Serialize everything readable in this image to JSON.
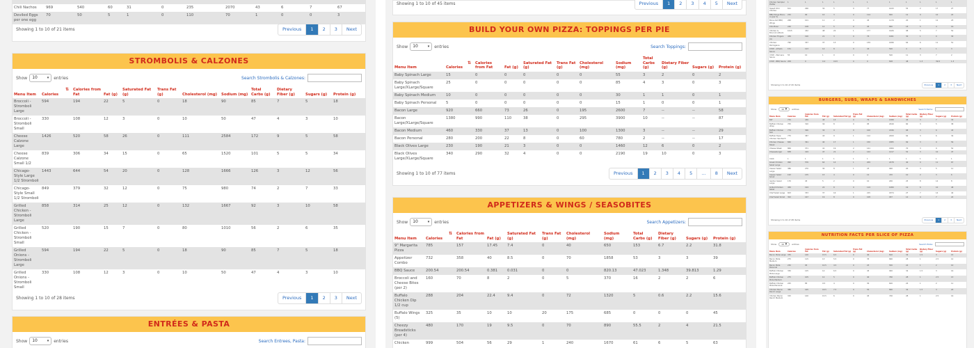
{
  "headers": [
    "Menu Item",
    "Calories",
    "Calories from Fat",
    "Fat (g)",
    "Saturated Fat (g)",
    "Trans Fat (g)",
    "Cholesterol (mg)",
    "Sodium (mg)",
    "Total Carbs (g)",
    "Dietary Fiber (g)",
    "Sugars (g)",
    "Protein (g)"
  ],
  "ui": {
    "show": "Show",
    "entries": "entries",
    "select_value": "10",
    "previous": "Previous",
    "next": "Next",
    "ellipsis": "…",
    "sort_glyph": "⇅"
  },
  "col1": {
    "top_rows": [
      [
        "Chili Nachos",
        "969",
        "540",
        "60",
        "31",
        "0",
        "235",
        "2070",
        "43",
        "6",
        "7",
        "67"
      ],
      [
        "Deviled Eggs per one egg",
        "70",
        "50",
        "5",
        "1",
        "0",
        "110",
        "70",
        "1",
        "0",
        "0",
        "3"
      ]
    ],
    "top_info": "Showing 1 to 10 of 21 items",
    "top_pages": [
      "1",
      "2",
      "3"
    ],
    "strom": {
      "title": "STROMBOLIS & CALZONES",
      "search_label": "Search Strombolis & Calzones:",
      "info": "Showing 1 to 10 of 28 items",
      "pages": [
        "1",
        "2",
        "3"
      ],
      "rows": [
        [
          "Broccoli - Stromboli Large",
          "594",
          "194",
          "22",
          "5",
          "0",
          "18",
          "90",
          "85",
          "7",
          "5",
          "18"
        ],
        [
          "Broccoli - Stromboli Small",
          "330",
          "108",
          "12",
          "3",
          "0",
          "10",
          "50",
          "47",
          "4",
          "3",
          "10"
        ],
        [
          "Cheese Calzone Large",
          "1426",
          "520",
          "58",
          "26",
          "0",
          "111",
          "2584",
          "172",
          "9",
          "5",
          "58"
        ],
        [
          "Cheese Calzone Small 1/2",
          "839",
          "306",
          "34",
          "15",
          "0",
          "65",
          "1520",
          "101",
          "5",
          "5",
          "34"
        ],
        [
          "Chicago-Style Large 1/2 Stromboli",
          "1443",
          "644",
          "54",
          "20",
          "0",
          "128",
          "1666",
          "126",
          "3",
          "12",
          "56"
        ],
        [
          "Chicago-Style Small 1/2 Stromboli",
          "849",
          "379",
          "32",
          "12",
          "0",
          "75",
          "980",
          "74",
          "2",
          "7",
          "33"
        ],
        [
          "Grilled Chicken - Stromboli Large",
          "858",
          "314",
          "25",
          "12",
          "0",
          "132",
          "1667",
          "92",
          "3",
          "10",
          "58"
        ],
        [
          "Grilled Chicken - Stromboli Small",
          "520",
          "190",
          "15",
          "7",
          "0",
          "80",
          "1010",
          "56",
          "2",
          "6",
          "35"
        ],
        [
          "Grilled Onions - Stromboli Large",
          "594",
          "194",
          "22",
          "5",
          "0",
          "18",
          "90",
          "85",
          "7",
          "5",
          "18"
        ],
        [
          "Grilled Onions - Stromboli Small",
          "330",
          "108",
          "12",
          "3",
          "0",
          "10",
          "50",
          "47",
          "4",
          "3",
          "10"
        ]
      ]
    },
    "entrees": {
      "title": "ENTRÉES & PASTA",
      "search_label": "Search Entrees, Pasta:"
    }
  },
  "col2": {
    "top_info": "Showing 1 to 10 of 45 items",
    "top_pages": [
      "1",
      "2",
      "3",
      "4",
      "5"
    ],
    "toppings": {
      "title": "BUILD YOUR OWN PIZZA: TOPPINGS PER PIE",
      "search_label": "Search Toppings:",
      "info": "Showing 1 to 10 of 77 items",
      "pages": [
        "1",
        "2",
        "3",
        "4",
        "5",
        "8"
      ],
      "rows": [
        [
          "Baby Spinach Large",
          "15",
          "0",
          "0",
          "0",
          "0",
          "0",
          "55",
          "3",
          "2",
          "0",
          "2"
        ],
        [
          "Baby Spinach Large/XLarge/Square",
          "25",
          "0",
          "0",
          "0",
          "0",
          "0",
          "85",
          "4",
          "3",
          "0",
          "3"
        ],
        [
          "Baby Spinach Medium",
          "10",
          "0",
          "0",
          "0",
          "0",
          "0",
          "30",
          "1",
          "1",
          "0",
          "1"
        ],
        [
          "Baby Spinach Personal",
          "5",
          "0",
          "0",
          "0",
          "0",
          "0",
          "15",
          "1",
          "0",
          "0",
          "1"
        ],
        [
          "Bacon Large",
          "920",
          "660",
          "73",
          "26",
          "0",
          "195",
          "2600",
          "7",
          "--",
          "--",
          "58"
        ],
        [
          "Bacon Large/XLarge/Square",
          "1380",
          "990",
          "110",
          "38",
          "0",
          "295",
          "3900",
          "10",
          "--",
          "--",
          "87"
        ],
        [
          "Bacon Medium",
          "460",
          "330",
          "37",
          "13",
          "0",
          "100",
          "1300",
          "3",
          "--",
          "--",
          "29"
        ],
        [
          "Bacon Personal",
          "280",
          "200",
          "22",
          "8",
          "0",
          "60",
          "780",
          "2",
          "--",
          "--",
          "17"
        ],
        [
          "Black Olives Large",
          "230",
          "190",
          "21",
          "3",
          "0",
          "0",
          "1460",
          "12",
          "6",
          "0",
          "2"
        ],
        [
          "Black Olives Large/XLarge/Square",
          "340",
          "290",
          "32",
          "4",
          "0",
          "0",
          "2190",
          "19",
          "10",
          "0",
          "3"
        ]
      ]
    },
    "apps": {
      "title": "APPETIZERS & WINGS / SEASOBITES",
      "search_label": "Search Appetizers:",
      "rows": [
        [
          "9\" Margarita Pizza",
          "785",
          "157",
          "17.45",
          "7.4",
          "0",
          "40",
          "650",
          "153",
          "6.7",
          "2.2",
          "31.8"
        ],
        [
          "Appetizer Combo",
          "732",
          "358",
          "40",
          "8.5",
          "0",
          "70",
          "1858",
          "53",
          "3",
          "3",
          "39"
        ],
        [
          "BBQ Sauce",
          "200.54",
          "200.54",
          "0.381",
          "0.031",
          "0",
          "0",
          "820.13",
          "47.023",
          "1.348",
          "39.813",
          "1.29"
        ],
        [
          "Broccoli and Cheese Bites (per 2)",
          "160",
          "70",
          "8",
          "2",
          "0",
          "5",
          "370",
          "16",
          "2",
          "2",
          "6"
        ],
        [
          "Buffalo Chicken Dip 1/2 cup",
          "288",
          "204",
          "22.4",
          "9.4",
          "0",
          "72",
          "1320",
          "5",
          "0.6",
          "2.2",
          "15.6"
        ],
        [
          "Buffalo Wings (5)",
          "325",
          "35",
          "10",
          "10",
          "20",
          "175",
          "685",
          "0",
          "0",
          "0",
          "45"
        ],
        [
          "Cheezy Breadsticks (per 4)",
          "480",
          "170",
          "19",
          "9.5",
          "0",
          "70",
          "890",
          "55.5",
          "2",
          "4",
          "21.5"
        ],
        [
          "Chicken",
          "999",
          "504",
          "56",
          "29",
          "1",
          "240",
          "1670",
          "61",
          "6",
          "5",
          "63"
        ]
      ]
    }
  },
  "col3": {
    "top_rows": [
      [
        "Chicken Sampler Platter",
        "1",
        "1",
        "1",
        "1",
        "1",
        "1",
        "1",
        "1",
        "1",
        "1",
        "1"
      ],
      [
        "Sweet Chili Chicken",
        "611",
        "296",
        "32",
        "5",
        "0",
        "77",
        "1043",
        "55",
        "2",
        "17",
        "27"
      ],
      [
        "BBQ Wings Bone-in (per 5)",
        "232",
        "90",
        "10",
        "3",
        "0",
        "114",
        "820",
        "12",
        "0",
        "10",
        "22"
      ],
      [
        "Bone-Out BBQ Wings",
        "268",
        "101",
        "11",
        "2",
        "0",
        "45",
        "1179",
        "20",
        "1",
        "12",
        "23"
      ],
      [
        "Chili Bowl",
        "240",
        "108",
        "12",
        "5",
        "0",
        "45",
        "800",
        "18",
        "5",
        "4",
        "16"
      ],
      [
        "Chicken & Broccoli Alfredo",
        "1015",
        "432",
        "48",
        "22",
        "1",
        "177",
        "1926",
        "98",
        "5",
        "7",
        "52"
      ],
      [
        "Chicken Fingers (4)",
        "436",
        "190",
        "21",
        "3",
        "0",
        "76",
        "1061",
        "30",
        "1",
        "0",
        "30"
      ],
      [
        "Chicken Parmigiana",
        "790",
        "337",
        "37",
        "13",
        "0",
        "139",
        "1696",
        "64",
        "6",
        "11",
        "51"
      ],
      [
        "CYOP - Alfredo Sauce",
        "151",
        "123",
        "14",
        "8",
        "0",
        "44",
        "520",
        "4",
        "0",
        "1",
        "3"
      ],
      [
        "CYOP - Marinara Sauce",
        "55",
        "10",
        "1",
        "0",
        "0",
        "0",
        "540",
        "11",
        "3",
        "7",
        "2"
      ],
      [
        "CYOP - BBQ Sauce",
        "209",
        "0",
        "0.4",
        "0.03",
        "0",
        "0",
        "818",
        "48",
        "1.3",
        "39.8",
        "1.3"
      ]
    ],
    "top_info": "Showing 1 to 10 of 20 items",
    "top_pages": [
      "1",
      "2",
      "3"
    ],
    "burgers": {
      "title": "BURGERS, SUBS, WRAPS & SANDWICHES",
      "search_label": "Search Items:",
      "info": "Showing 1 to 10 of 28 items",
      "pages": [
        "1",
        "2",
        "3"
      ],
      "rows": [
        [
          "BLT",
          "734",
          "436",
          "48",
          "13",
          "0",
          "79",
          "1588",
          "45",
          "3",
          "7",
          "33"
        ],
        [
          "Buffalo Chicken Wrap",
          "705",
          "310",
          "34",
          "8",
          "0",
          "95",
          "2049",
          "60",
          "3",
          "5",
          "38"
        ],
        [
          "Buffalo Chicken Sub",
          "779",
          "306",
          "34",
          "9",
          "0",
          "100",
          "2196",
          "68",
          "3",
          "6",
          "43"
        ],
        [
          "Buffalo Style Chicken Sandwich",
          "775",
          "387",
          "43",
          "9",
          "1",
          "112",
          "2200",
          "62",
          "3",
          "6",
          "34"
        ],
        [
          "Chicken Cheese Steak",
          "846",
          "361",
          "40",
          "17",
          "1",
          "150",
          "1885",
          "69",
          "3",
          "9",
          "56"
        ],
        [
          "Cheese Steak",
          "869",
          "371",
          "41",
          "19",
          "2",
          "141",
          "1866",
          "70",
          "3",
          "9",
          "52"
        ],
        [
          "Cheeseburger",
          "838",
          "419",
          "47",
          "21",
          "2",
          "144",
          "1417",
          "52",
          "3",
          "10",
          "47"
        ]
      ],
      "rows2": [
        [
          "Cobb",
          "1",
          "1",
          "1",
          "1",
          "1",
          "1",
          "1",
          "1",
          "1",
          "1",
          "1"
        ],
        [
          "Greek Chicken Salad Large",
          "990",
          "576",
          "64",
          "14",
          "1",
          "209",
          "2478",
          "40",
          "9",
          "11",
          "67"
        ],
        [
          "Caesar Salad Large",
          "386",
          "270",
          "30",
          "8",
          "1",
          "23",
          "940",
          "20",
          "4",
          "5",
          "11"
        ],
        [
          "Caesar Salad Small",
          "193",
          "135",
          "15",
          "4",
          "0",
          "12",
          "470",
          "10",
          "2",
          "3",
          "6"
        ],
        [
          "Garden Salad Large",
          "170",
          "45",
          "5",
          "2",
          "0",
          "10",
          "200",
          "25",
          "8",
          "14",
          "8"
        ],
        [
          "Grilled Chicken Salad",
          "456",
          "194",
          "22",
          "8",
          "0",
          "119",
          "1080",
          "19",
          "6",
          "10",
          "48"
        ],
        [
          "Chef Salad Large",
          "603",
          "333",
          "37",
          "16",
          "1",
          "215",
          "1874",
          "27",
          "7",
          "14",
          "44"
        ],
        [
          "Chef Salad Small",
          "302",
          "167",
          "19",
          "8",
          "0",
          "108",
          "937",
          "14",
          "4",
          "7",
          "22"
        ]
      ]
    },
    "nutri": {
      "title": "NUTRITION FACTS PER SLICE OF PIZZA",
      "search_label": "Search Pizza:",
      "rows": [
        [
          "Bacon Pizza Large",
          "335",
          "140",
          "15.5",
          "6.5",
          "0",
          "40",
          "810",
          "34",
          "1.5",
          "3",
          "15"
        ],
        [
          "Bacon Pizza Medium",
          "275",
          "115",
          "13",
          "5.5",
          "0",
          "35",
          "660",
          "28",
          "1",
          "2.5",
          "12"
        ],
        [
          "Bacon Pizza Personal",
          "230",
          "95",
          "10.5",
          "4.5",
          "0",
          "25",
          "550",
          "24",
          "1",
          "2",
          "10"
        ],
        [
          "Buffalo Chicken Pizza Large",
          "330",
          "125",
          "14",
          "6.5",
          "0",
          "45",
          "920",
          "34",
          "1.5",
          "3",
          "16"
        ],
        [
          "Buffalo Chicken Pizza Medium",
          "275",
          "105",
          "12",
          "5",
          "0",
          "40",
          "760",
          "28",
          "1",
          "2.5",
          "13"
        ],
        [
          "Buffalo Chicken Pizza Personal",
          "225",
          "85",
          "9.5",
          "4",
          "0",
          "30",
          "620",
          "24",
          "1",
          "2",
          "11"
        ],
        [
          "Chicken Bacon Ranch Large",
          "380",
          "165",
          "18.5",
          "7.5",
          "0",
          "55",
          "890",
          "34",
          "1.5",
          "3",
          "20"
        ],
        [
          "Chicken Bacon Ranch Medium",
          "315",
          "140",
          "15.5",
          "6",
          "0",
          "45",
          "740",
          "28",
          "1",
          "2.5",
          "16"
        ]
      ]
    }
  }
}
